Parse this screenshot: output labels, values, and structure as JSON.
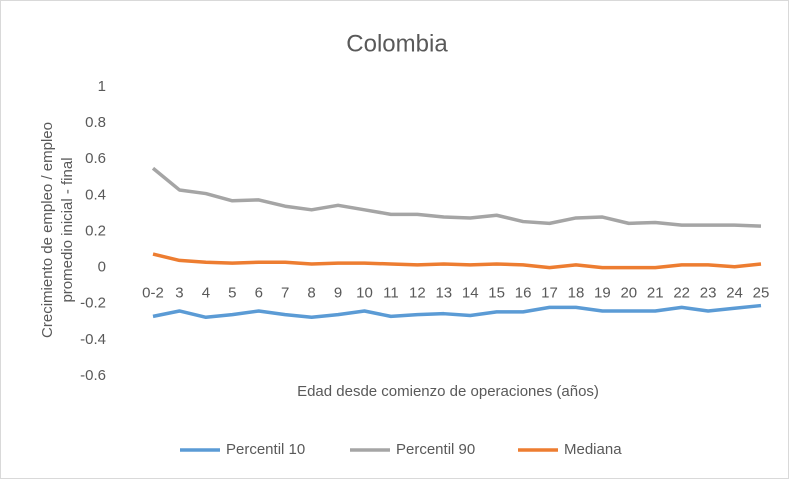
{
  "chart_data": {
    "type": "line",
    "title": "Colombia",
    "y_label": [
      "Crecimiento de empleo / empleo",
      "promedio inicial - final"
    ],
    "x_label": "Edad desde comienzo de operaciones (años)",
    "categories": [
      "0-2",
      "3",
      "4",
      "5",
      "6",
      "7",
      "8",
      "9",
      "10",
      "11",
      "12",
      "13",
      "14",
      "15",
      "16",
      "17",
      "18",
      "19",
      "20",
      "21",
      "22",
      "23",
      "24",
      "25"
    ],
    "series": [
      {
        "name": "Percentil 10",
        "color": "#5b9bd5",
        "values": [
          -0.27,
          -0.24,
          -0.275,
          -0.26,
          -0.24,
          -0.26,
          -0.275,
          -0.26,
          -0.24,
          -0.27,
          -0.26,
          -0.255,
          -0.265,
          -0.245,
          -0.245,
          -0.22,
          -0.22,
          -0.24,
          -0.24,
          -0.24,
          -0.22,
          -0.24,
          -0.225,
          -0.21
        ]
      },
      {
        "name": "Percentil 90",
        "color": "#a5a5a5",
        "values": [
          0.55,
          0.43,
          0.41,
          0.37,
          0.375,
          0.34,
          0.32,
          0.345,
          0.32,
          0.295,
          0.295,
          0.28,
          0.275,
          0.29,
          0.255,
          0.245,
          0.275,
          0.28,
          0.245,
          0.25,
          0.235,
          0.235,
          0.235,
          0.23
        ]
      },
      {
        "name": "Mediana",
        "color": "#ed7d31",
        "values": [
          0.075,
          0.04,
          0.03,
          0.025,
          0.03,
          0.03,
          0.02,
          0.025,
          0.025,
          0.02,
          0.015,
          0.02,
          0.015,
          0.02,
          0.015,
          0.0,
          0.015,
          0.0,
          0.0,
          0.0,
          0.015,
          0.015,
          0.005,
          0.02
        ]
      }
    ],
    "ylim": [
      -0.6,
      1
    ],
    "yticks": [
      -0.6,
      -0.4,
      -0.2,
      0,
      0.2,
      0.4,
      0.6,
      0.8,
      1
    ],
    "grid": false,
    "legend": "bottom"
  }
}
